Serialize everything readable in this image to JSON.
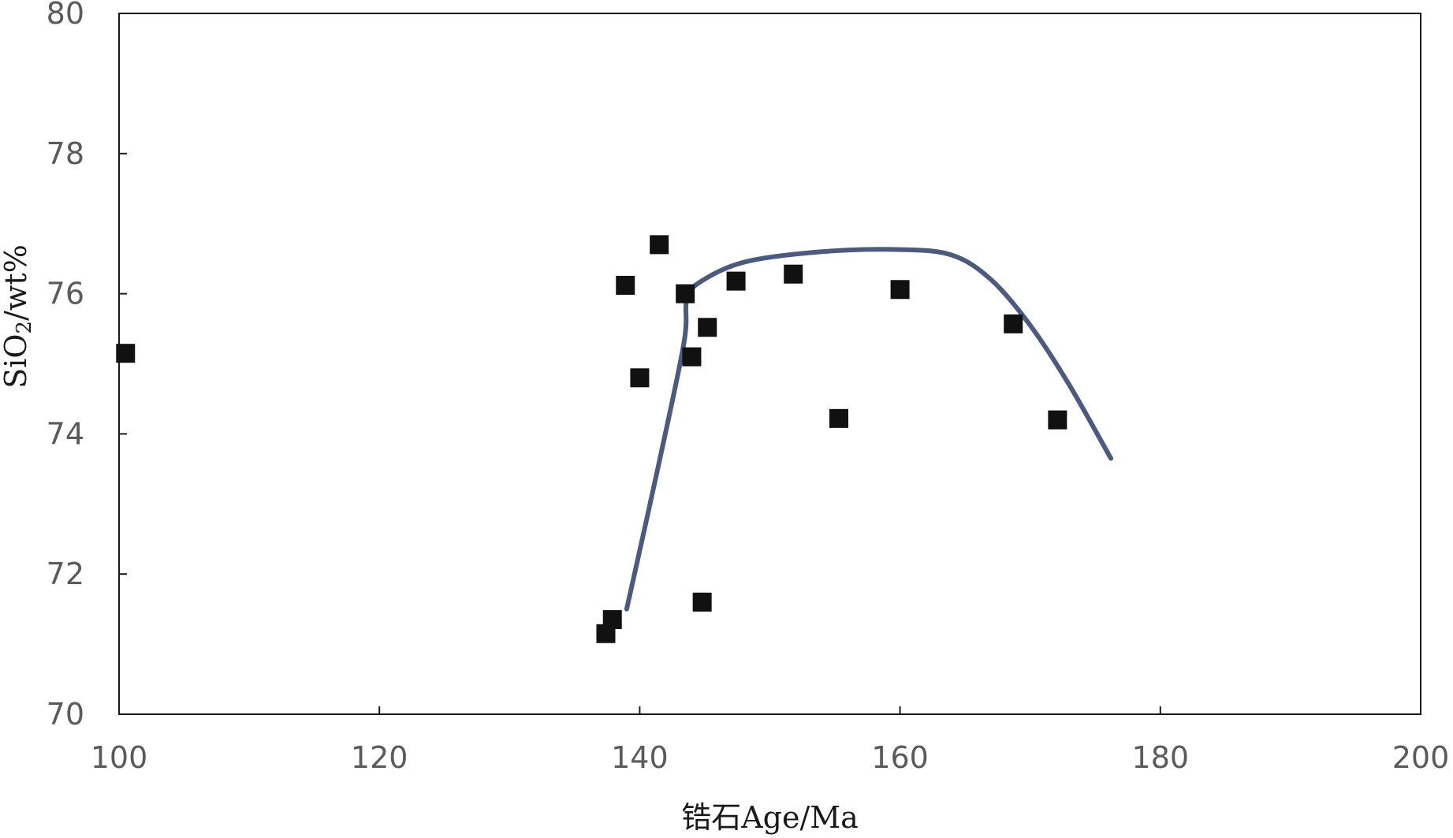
{
  "chart_data": {
    "type": "scatter",
    "xlabel": "锆石Age/Ma",
    "ylabel_parts": {
      "prefix": "SiO",
      "subscript": "2",
      "suffix": "/wt%"
    },
    "xlim": [
      100,
      200
    ],
    "ylim": [
      70,
      80
    ],
    "x_ticks": [
      100,
      120,
      140,
      160,
      180,
      200
    ],
    "y_ticks": [
      70,
      72,
      74,
      76,
      78,
      80
    ],
    "grid": false,
    "legend": "none",
    "series": [
      {
        "type": "scatter",
        "marker": "square",
        "color": "#111111",
        "points": [
          [
            100.5,
            75.15
          ],
          [
            137.4,
            71.15
          ],
          [
            137.9,
            71.35
          ],
          [
            138.9,
            76.12
          ],
          [
            140.0,
            74.8
          ],
          [
            141.5,
            76.7
          ],
          [
            143.5,
            76.0
          ],
          [
            144.0,
            75.1
          ],
          [
            144.8,
            71.6
          ],
          [
            145.2,
            75.52
          ],
          [
            147.4,
            76.18
          ],
          [
            151.8,
            76.28
          ],
          [
            155.3,
            74.22
          ],
          [
            160.0,
            76.06
          ],
          [
            168.7,
            75.57
          ],
          [
            172.1,
            74.2
          ]
        ]
      },
      {
        "type": "line",
        "smooth": true,
        "color": "#4c5a7e",
        "points": [
          [
            139.0,
            71.5
          ],
          [
            141.5,
            73.6
          ],
          [
            143.4,
            75.3
          ],
          [
            143.6,
            75.9
          ],
          [
            144.5,
            76.15
          ],
          [
            148.0,
            76.45
          ],
          [
            154.0,
            76.6
          ],
          [
            160.0,
            76.63
          ],
          [
            164.0,
            76.55
          ],
          [
            167.0,
            76.2
          ],
          [
            170.0,
            75.55
          ],
          [
            173.0,
            74.7
          ],
          [
            176.2,
            73.65
          ]
        ]
      }
    ]
  },
  "colors": {
    "axis": "#1a1a1a",
    "tick_text": "#5a5a5a",
    "marker": "#111111",
    "trend_line": "#4c5a7e"
  }
}
